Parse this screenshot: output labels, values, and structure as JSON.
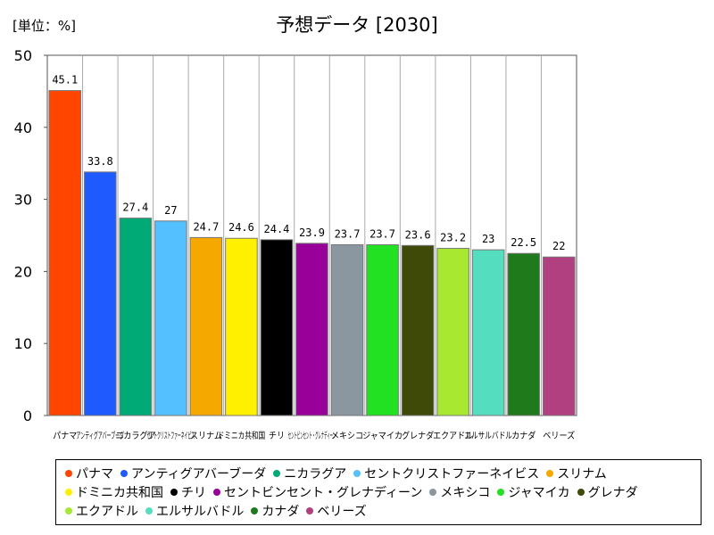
{
  "unit_label": "[単位：%]",
  "chart_data": {
    "type": "bar",
    "title": "予想データ [2030]",
    "xlabel": "",
    "ylabel": "",
    "ylim": [
      0,
      50
    ],
    "yticks": [
      0,
      10,
      20,
      30,
      40,
      50
    ],
    "grid": "vertical",
    "legend_position": "bottom",
    "categories": [
      "パナマ",
      "アンティグアバーブーダ",
      "ニカラグア",
      "セントクリストファーネイビス",
      "スリナム",
      "ドミニカ共和国",
      "チリ",
      "セントビンセント・グレナディーン",
      "メキシコ",
      "ジャマイカ",
      "グレナダ",
      "エクアドル",
      "エルサルバドル",
      "カナダ",
      "ベリーズ"
    ],
    "values": [
      45.1,
      33.8,
      27.4,
      27,
      24.7,
      24.6,
      24.4,
      23.9,
      23.7,
      23.7,
      23.6,
      23.2,
      23,
      22.5,
      22
    ],
    "value_labels": [
      "45.1",
      "33.8",
      "27.4",
      "27",
      "24.7",
      "24.6",
      "24.4",
      "23.9",
      "23.7",
      "23.7",
      "23.6",
      "23.2",
      "23",
      "22.5",
      "22"
    ],
    "colors": [
      "#ff4500",
      "#1e5aff",
      "#00aa77",
      "#55c0ff",
      "#f5a800",
      "#fff000",
      "#000000",
      "#990099",
      "#8a96a0",
      "#22e022",
      "#3f4a08",
      "#a8e830",
      "#55ddc0",
      "#1e7a1a",
      "#b04080"
    ]
  }
}
